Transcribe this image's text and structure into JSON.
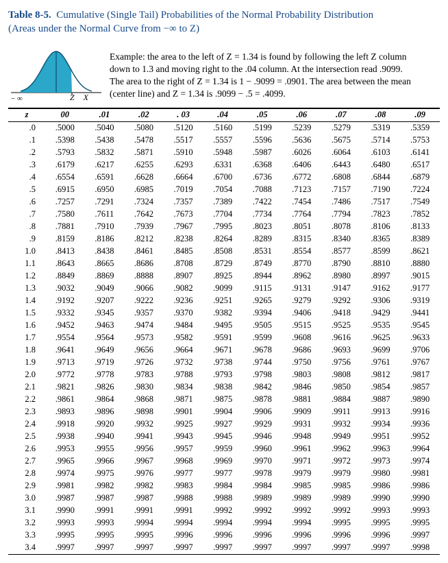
{
  "title": {
    "label": "Table 8-5.",
    "text": "Cumulative (Single Tail) Probabilities of the Normal Probability Distribution",
    "subtitle": "(Areas under the Normal Curve from −∞ to Z)"
  },
  "example": {
    "l1": "Example: the area to the left of Z = 1.34 is found by following the left Z column",
    "l2": "down to 1.3 and moving right to the .04 column. At the intersection read .9099.",
    "l3": "The area to the right of Z = 1.34 is 1 − .9099 = .0901. The area between the mean",
    "l4": "(center line) and Z = 1.34 is .9099 − .5 = .4099."
  },
  "axis_labels": {
    "z": "Z",
    "x": "X",
    "minf": "− ∞"
  },
  "curve_colors": {
    "fill": "#2aa7c9",
    "stroke": "#0a506f",
    "axis": "#000000"
  },
  "headers": [
    "z",
    "00",
    ".01",
    ".02",
    ". 03",
    ".04",
    ".05",
    ".06",
    ".07",
    ".08",
    ".09"
  ],
  "z_rows": [
    [
      ".0",
      ".5000",
      ".5040",
      ".5080",
      ".5120",
      ".5160",
      ".5199",
      ".5239",
      ".5279",
      ".5319",
      ".5359"
    ],
    [
      ".1",
      ".5398",
      ".5438",
      ".5478",
      ".5517",
      ".5557",
      ".5596",
      ".5636",
      ".5675",
      ".5714",
      ".5753"
    ],
    [
      ".2",
      ".5793",
      ".5832",
      ".5871",
      ".5910",
      ".5948",
      ".5987",
      ".6026",
      ".6064",
      ".6103",
      ".6141"
    ],
    [
      ".3",
      ".6179",
      ".6217",
      ".6255",
      ".6293",
      ".6331",
      ".6368",
      ".6406",
      ".6443",
      ".6480",
      ".6517"
    ],
    [
      ".4",
      ".6554",
      ".6591",
      ".6628",
      ".6664",
      ".6700",
      ".6736",
      ".6772",
      ".6808",
      ".6844",
      ".6879"
    ],
    [
      ".5",
      ".6915",
      ".6950",
      ".6985",
      ".7019",
      ".7054",
      ".7088",
      ".7123",
      ".7157",
      ".7190",
      ".7224"
    ],
    [
      ".6",
      ".7257",
      ".7291",
      ".7324",
      ".7357",
      ".7389",
      ".7422",
      ".7454",
      ".7486",
      ".7517",
      ".7549"
    ],
    [
      ".7",
      ".7580",
      ".7611",
      ".7642",
      ".7673",
      ".7704",
      ".7734",
      ".7764",
      ".7794",
      ".7823",
      ".7852"
    ],
    [
      ".8",
      ".7881",
      ".7910",
      ".7939",
      ".7967",
      ".7995",
      ".8023",
      ".8051",
      ".8078",
      ".8106",
      ".8133"
    ],
    [
      ".9",
      ".8159",
      ".8186",
      ".8212",
      ".8238",
      ".8264",
      ".8289",
      ".8315",
      ".8340",
      ".8365",
      ".8389"
    ],
    [
      "1.0",
      ".8413",
      ".8438",
      ".8461",
      ".8485",
      ".8508",
      ".8531",
      ".8554",
      ".8577",
      ".8599",
      ".8621"
    ],
    [
      "1.1",
      ".8643",
      ".8665",
      ".8686",
      ".8708",
      ".8729",
      ".8749",
      ".8770",
      ".8790",
      ".8810",
      ".8880"
    ],
    [
      "1.2",
      ".8849",
      ".8869",
      ".8888",
      ".8907",
      ".8925",
      ".8944",
      ".8962",
      ".8980",
      ".8997",
      ".9015"
    ],
    [
      "1.3",
      ".9032",
      ".9049",
      ".9066",
      ".9082",
      ".9099",
      ".9115",
      ".9131",
      ".9147",
      ".9162",
      ".9177"
    ],
    [
      "1.4",
      ".9192",
      ".9207",
      ".9222",
      ".9236",
      ".9251",
      ".9265",
      ".9279",
      ".9292",
      ".9306",
      ".9319"
    ],
    [
      "1.5",
      ".9332",
      ".9345",
      ".9357",
      ".9370",
      ".9382",
      ".9394",
      ".9406",
      ".9418",
      ".9429",
      ".9441"
    ],
    [
      "1.6",
      ".9452",
      ".9463",
      ".9474",
      ".9484",
      ".9495",
      ".9505",
      ".9515",
      ".9525",
      ".9535",
      ".9545"
    ],
    [
      "1.7",
      ".9554",
      ".9564",
      ".9573",
      ".9582",
      ".9591",
      ".9599",
      ".9608",
      ".9616",
      ".9625",
      ".9633"
    ],
    [
      "1.8",
      ".9641",
      ".9649",
      ".9656",
      ".9664",
      ".9671",
      ".9678",
      ".9686",
      ".9693",
      ".9699",
      ".9706"
    ],
    [
      "1.9",
      ".9713",
      ".9719",
      ".9726",
      ".9732",
      ".9738",
      ".9744",
      ".9750",
      ".9756",
      ".9761",
      ".9767"
    ],
    [
      "2.0",
      ".9772",
      ".9778",
      ".9783",
      ".9788",
      ".9793",
      ".9798",
      ".9803",
      ".9808",
      ".9812",
      ".9817"
    ],
    [
      "2.1",
      ".9821",
      ".9826",
      ".9830",
      ".9834",
      ".9838",
      ".9842",
      ".9846",
      ".9850",
      ".9854",
      ".9857"
    ],
    [
      "2.2",
      ".9861",
      ".9864",
      ".9868",
      ".9871",
      ".9875",
      ".9878",
      ".9881",
      ".9884",
      ".9887",
      ".9890"
    ],
    [
      "2.3",
      ".9893",
      ".9896",
      ".9898",
      ".9901",
      ".9904",
      ".9906",
      ".9909",
      ".9911",
      ".9913",
      ".9916"
    ],
    [
      "2.4",
      ".9918",
      ".9920",
      ".9932",
      ".9925",
      ".9927",
      ".9929",
      ".9931",
      ".9932",
      ".9934",
      ".9936"
    ],
    [
      "2.5",
      ".9938",
      ".9940",
      ".9941",
      ".9943",
      ".9945",
      ".9946",
      ".9948",
      ".9949",
      ".9951",
      ".9952"
    ],
    [
      "2.6",
      ".9953",
      ".9955",
      ".9956",
      ".9957",
      ".9959",
      ".9960",
      ".9961",
      ".9962",
      ".9963",
      ".9964"
    ],
    [
      "2.7",
      ".9965",
      ".9966",
      ".9967",
      ".9968",
      ".9969",
      ".9970",
      ".9971",
      ".9972",
      ".9973",
      ".9974"
    ],
    [
      "2.8",
      ".9974",
      ".9975",
      ".9976",
      ".9977",
      ".9977",
      ".9978",
      ".9979",
      ".9979",
      ".9980",
      ".9981"
    ],
    [
      "2.9",
      ".9981",
      ".9982",
      ".9982",
      ".9983",
      ".9984",
      ".9984",
      ".9985",
      ".9985",
      ".9986",
      ".9986"
    ],
    [
      "3.0",
      ".9987",
      ".9987",
      ".9987",
      ".9988",
      ".9988",
      ".9989",
      ".9989",
      ".9989",
      ".9990",
      ".9990"
    ],
    [
      "3.1",
      ".9990",
      ".9991",
      ".9991",
      ".9991",
      ".9992",
      ".9992",
      ".9992",
      ".9992",
      ".9993",
      ".9993"
    ],
    [
      "3.2",
      ".9993",
      ".9993",
      ".9994",
      ".9994",
      ".9994",
      ".9994",
      ".9994",
      ".9995",
      ".9995",
      ".9995"
    ],
    [
      "3.3",
      ".9995",
      ".9995",
      ".9995",
      ".9996",
      ".9996",
      ".9996",
      ".9996",
      ".9996",
      ".9996",
      ".9997"
    ],
    [
      "3.4",
      ".9997",
      ".9997",
      ".9997",
      ".9997",
      ".9997",
      ".9997",
      ".9997",
      ".9997",
      ".9997",
      ".9998"
    ]
  ]
}
